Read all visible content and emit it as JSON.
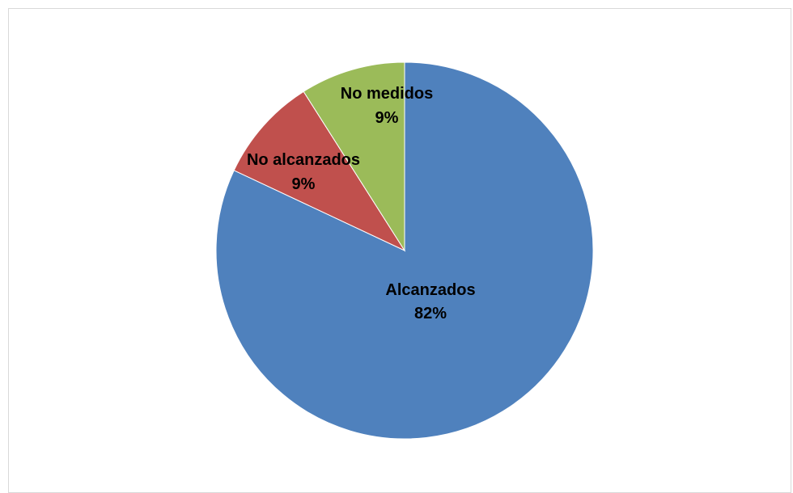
{
  "chart_data": {
    "type": "pie",
    "categories": [
      "Alcanzados",
      "No alcanzados",
      "No medidos"
    ],
    "values": [
      82,
      9,
      9
    ],
    "labels": [
      {
        "name": "Alcanzados",
        "pct": "82%"
      },
      {
        "name": "No alcanzados",
        "pct": "9%"
      },
      {
        "name": "No medidos",
        "pct": "9%"
      }
    ],
    "colors": [
      "#4F81BD",
      "#C0504D",
      "#9BBB59"
    ],
    "start_angle_deg": 0,
    "direction": "clockwise",
    "title": "",
    "legend": "none"
  }
}
